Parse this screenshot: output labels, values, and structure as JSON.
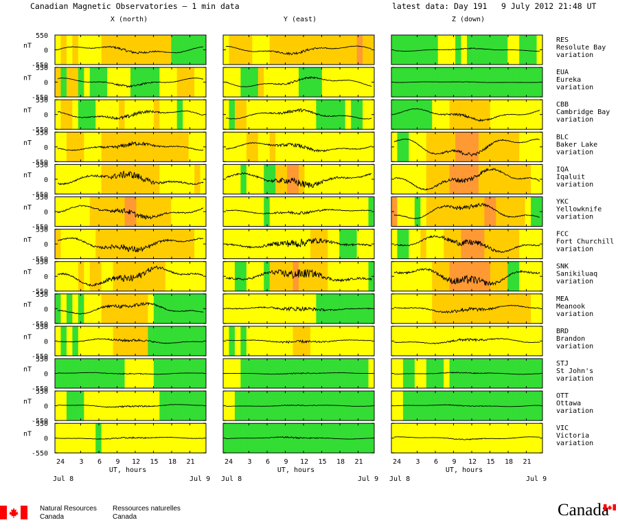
{
  "header": {
    "title": "Canadian Magnetic Observatories — 1 min data",
    "latest_label": "latest data: Day 191",
    "date_label": "9 July 2012 21:48 UT"
  },
  "footer": {
    "en_line1": "Natural Resources",
    "en_line2": "Canada",
    "fr_line1": "Ressources naturelles",
    "fr_line2": "Canada",
    "wordmark": "Canada"
  },
  "colors": {
    "quiet": "#33dd33",
    "unsettled": "#ffff00",
    "active": "#ffcc00",
    "storm": "#ff9933",
    "trace": "#000000"
  },
  "chart_data": {
    "type": "line",
    "title": "Canadian Magnetic Observatories — 1 min data",
    "columns": [
      "X (north)",
      "Y (east)",
      "Z (down)"
    ],
    "unit": "nT",
    "ylim": [
      -550,
      550
    ],
    "y_ticks": [
      "550",
      "0",
      "-550"
    ],
    "x_ticks": [
      "24",
      "3",
      "6",
      "9",
      "12",
      "15",
      "18",
      "21"
    ],
    "xlabel": "UT, hours",
    "date_start": "Jul 8",
    "date_end": "Jul 9",
    "row_suffix": "variation",
    "activity_code_legend": "0=quiet 1=unsettled 2=active 3=storm",
    "observatories": [
      {
        "code": "RES",
        "name": "Resolute Bay",
        "amp": [
          180,
          180,
          60
        ],
        "noise": [
          25,
          25,
          10
        ],
        "activity": [
          [
            "12121111222222222222000000",
            "12222111222222222222222322",
            "00000000111010000000110001"
          ]
        ]
      },
      {
        "code": "EUA",
        "name": "Eureka",
        "amp": [
          180,
          220,
          20
        ],
        "noise": [
          20,
          20,
          5
        ],
        "activity": [
          [
            "20220100011110000011122211",
            "11100021111110000111111111",
            "00000000000000000000000000"
          ]
        ]
      },
      {
        "code": "CBB",
        "name": "Cambridge Bay",
        "amp": [
          200,
          200,
          250
        ],
        "noise": [
          35,
          30,
          25
        ],
        "activity": [
          [
            "12210001111211111211101111",
            "10221111111111110000010011",
            "00000001112222222111111111"
          ]
        ]
      },
      {
        "code": "BLC",
        "name": "Baker Lake",
        "amp": [
          150,
          200,
          450
        ],
        "noise": [
          40,
          35,
          35
        ],
        "activity": [
          [
            "11222111222222222222222111",
            "11112211211111111111111111",
            "10011122222333322222221111"
          ]
        ]
      },
      {
        "code": "IQA",
        "name": "Iqaluit",
        "amp": [
          260,
          260,
          450
        ],
        "noise": [
          70,
          70,
          50
        ],
        "activity": [
          [
            "11111111222222222211111121",
            "11101110022332111111111111",
            "11111122223333322222222211"
          ]
        ]
      },
      {
        "code": "YKC",
        "name": "Yellowknife",
        "amp": [
          260,
          100,
          380
        ],
        "noise": [
          50,
          30,
          40
        ],
        "activity": [
          [
            "11111122222233222222111111",
            "11111110111111111111111110",
            "31110122222222223322222100"
          ]
        ]
      },
      {
        "code": "FCC",
        "name": "Fort Churchill",
        "amp": [
          300,
          150,
          350
        ],
        "noise": [
          60,
          80,
          60
        ],
        "activity": [
          [
            "21111112222222222222222211",
            "11111111111111122211000111",
            "10011211122233332222221111"
          ]
        ]
      },
      {
        "code": "SNK",
        "name": "Sanikiluaq",
        "amp": [
          400,
          220,
          380
        ],
        "noise": [
          70,
          90,
          80
        ],
        "activity": [
          [
            "11112122112222222221111111",
            "11001110222232222211111110",
            "11111112223333333222001111"
          ]
        ]
      },
      {
        "code": "MEA",
        "name": "Meanook",
        "amp": [
          250,
          60,
          150
        ],
        "noise": [
          40,
          40,
          40
        ],
        "activity": [
          [
            "01010111222222221000000000",
            "11111111111111110000000000",
            "11111112222222222222222211"
          ]
        ]
      },
      {
        "code": "BRD",
        "name": "Brandon",
        "amp": [
          100,
          60,
          120
        ],
        "noise": [
          25,
          25,
          25
        ],
        "activity": [
          [
            "10101111112222220000000000",
            "10101111111122211111111111",
            "11111111111111111111111111"
          ]
        ]
      },
      {
        "code": "STJ",
        "name": "St John's",
        "amp": [
          40,
          30,
          40
        ],
        "noise": [
          10,
          10,
          10
        ],
        "activity": [
          [
            "00000000000011111000000000",
            "11100000000000000000000001",
            "11001100010000000000000000"
          ]
        ]
      },
      {
        "code": "OTT",
        "name": "Ottawa",
        "amp": [
          60,
          30,
          40
        ],
        "noise": [
          15,
          10,
          10
        ],
        "activity": [
          [
            "11000111111111111100000000",
            "11000000000000000000000000",
            "11000000000000000000000000"
          ]
        ]
      },
      {
        "code": "VIC",
        "name": "Victoria",
        "amp": [
          40,
          40,
          60
        ],
        "noise": [
          15,
          15,
          10
        ],
        "activity": [
          [
            "11111110111111111111111111",
            "00000000000000000000000000",
            "11111111111111111111111111"
          ]
        ]
      }
    ]
  }
}
